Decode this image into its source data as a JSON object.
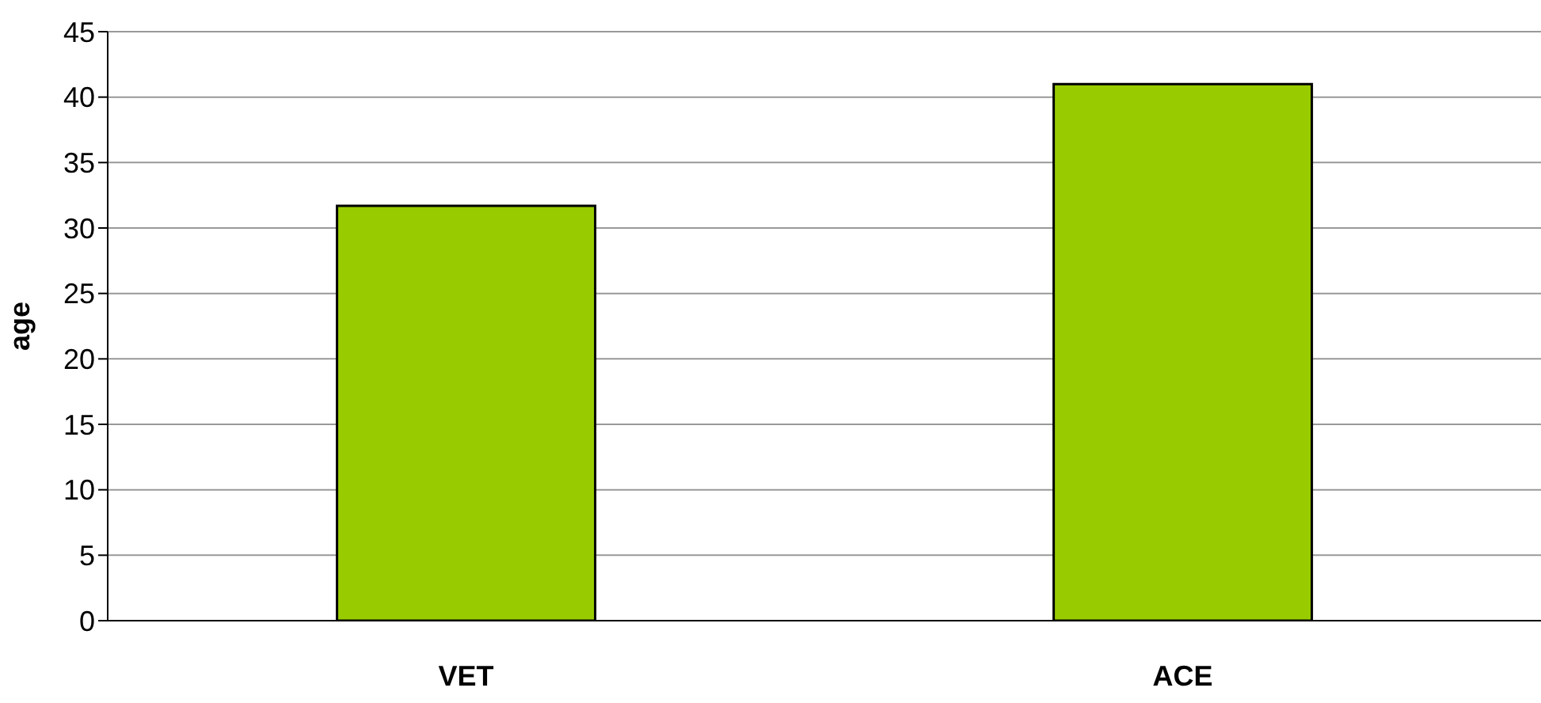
{
  "chart_data": {
    "type": "bar",
    "ylabel": "age",
    "categories": [
      "VET",
      "ACE"
    ],
    "values": [
      31.7,
      41
    ],
    "color": "#99cc00",
    "ylim": [
      0,
      45
    ],
    "yticks": [
      0,
      5,
      10,
      15,
      20,
      25,
      30,
      35,
      40,
      45
    ],
    "grid": "y",
    "legend": false
  }
}
